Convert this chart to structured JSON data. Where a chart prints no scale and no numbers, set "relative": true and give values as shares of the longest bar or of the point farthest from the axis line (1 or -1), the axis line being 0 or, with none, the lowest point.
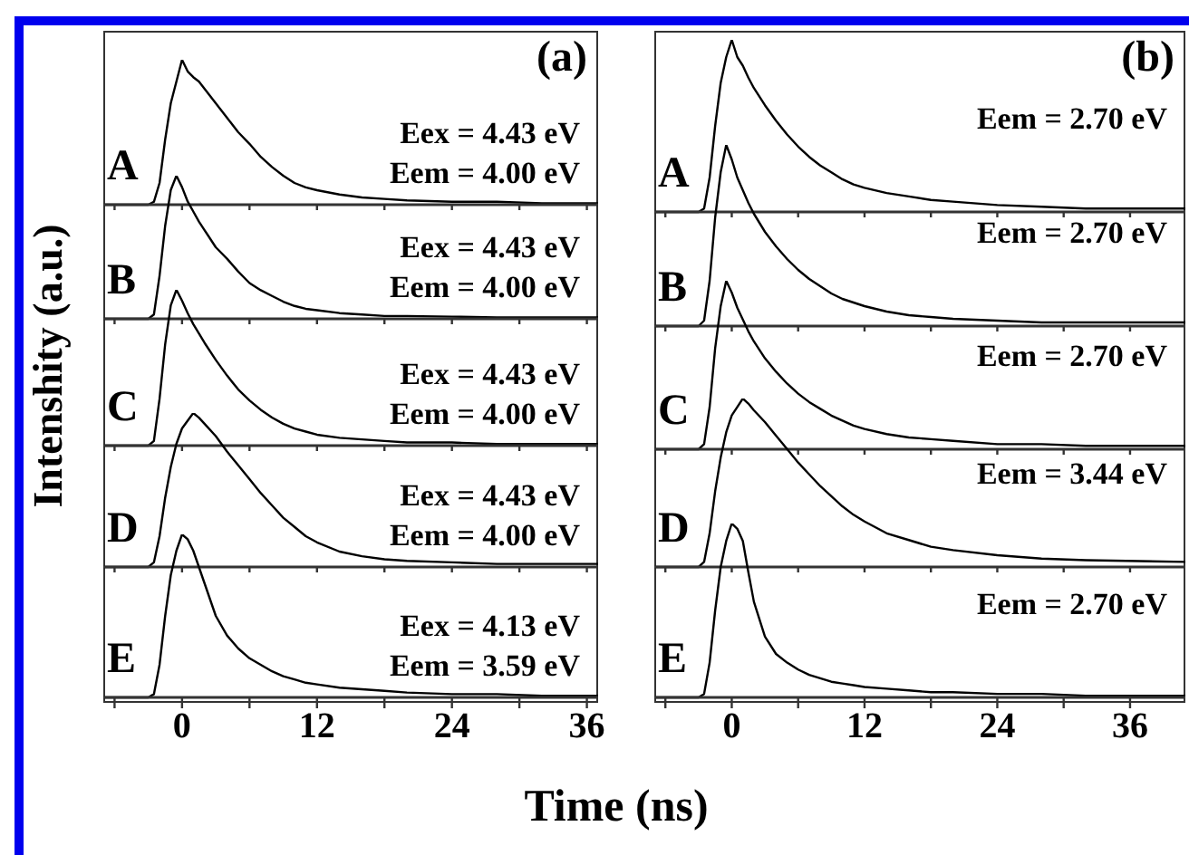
{
  "chart_data": [
    {
      "type": "line",
      "relative": true,
      "title": "(a)",
      "ylabel": "Intenshity (a.u.)",
      "tick_labels": false,
      "annotations": [
        "A",
        "Eex = 4.43 eV",
        "Eem = 4.00 eV"
      ],
      "x": [
        -7,
        -3,
        -2.5,
        -2,
        -1.5,
        -1,
        -0.5,
        0,
        0.5,
        1,
        1.5,
        2,
        3,
        4,
        5,
        6,
        7,
        8,
        9,
        10,
        11,
        12,
        14,
        16,
        18,
        20,
        24,
        28,
        32,
        37
      ],
      "values": [
        0,
        0,
        0.02,
        0.15,
        0.45,
        0.7,
        0.85,
        1,
        0.92,
        0.88,
        0.85,
        0.8,
        0.7,
        0.6,
        0.5,
        0.42,
        0.33,
        0.26,
        0.2,
        0.15,
        0.12,
        0.1,
        0.07,
        0.05,
        0.04,
        0.03,
        0.02,
        0.02,
        0.01,
        0.01
      ],
      "color": "#000000",
      "xlim": [
        -7,
        37
      ],
      "xticks": [
        {
          "value": -6,
          "label": null
        },
        0,
        {
          "value": 6,
          "label": null
        },
        12,
        {
          "value": 18,
          "label": null
        },
        24,
        {
          "value": 30,
          "label": null
        },
        36
      ]
    },
    {
      "type": "line",
      "relative": true,
      "tick_labels": false,
      "annotations": [
        "B",
        "Eex = 4.43 eV",
        "Eem = 4.00 eV"
      ],
      "x": [
        -7,
        -3,
        -2.5,
        -2,
        -1.5,
        -1,
        -0.5,
        0,
        0.5,
        1,
        1.5,
        2,
        3,
        4,
        5,
        6,
        7,
        8,
        9,
        10,
        11,
        12,
        14,
        16,
        18,
        20,
        24,
        28,
        32,
        37
      ],
      "values": [
        0,
        0,
        0.03,
        0.3,
        0.65,
        0.9,
        1,
        0.92,
        0.82,
        0.75,
        0.68,
        0.62,
        0.5,
        0.42,
        0.33,
        0.25,
        0.2,
        0.16,
        0.12,
        0.09,
        0.07,
        0.06,
        0.04,
        0.03,
        0.02,
        0.02,
        0.015,
        0.01,
        0.01,
        0.01
      ],
      "color": "#000000",
      "xlim": [
        -7,
        37
      ],
      "xticks": [
        {
          "value": -6,
          "label": null
        },
        0,
        {
          "value": 6,
          "label": null
        },
        12,
        {
          "value": 18,
          "label": null
        },
        24,
        {
          "value": 30,
          "label": null
        },
        36
      ]
    },
    {
      "type": "line",
      "relative": true,
      "tick_labels": false,
      "annotations": [
        "C",
        "Eex = 4.43 eV",
        "Eem = 4.00 eV"
      ],
      "x": [
        -7,
        -3,
        -2.5,
        -2,
        -1.5,
        -1,
        -0.5,
        0,
        0.5,
        1,
        1.5,
        2,
        3,
        4,
        5,
        6,
        7,
        8,
        9,
        10,
        11,
        12,
        14,
        16,
        18,
        20,
        24,
        28,
        32,
        37
      ],
      "values": [
        0,
        0,
        0.03,
        0.3,
        0.65,
        0.9,
        1,
        0.93,
        0.85,
        0.78,
        0.72,
        0.66,
        0.55,
        0.45,
        0.36,
        0.29,
        0.23,
        0.18,
        0.14,
        0.11,
        0.09,
        0.07,
        0.05,
        0.04,
        0.03,
        0.02,
        0.02,
        0.01,
        0.01,
        0.01
      ],
      "color": "#000000",
      "xlim": [
        -7,
        37
      ],
      "xticks": [
        {
          "value": -6,
          "label": null
        },
        0,
        {
          "value": 6,
          "label": null
        },
        12,
        {
          "value": 18,
          "label": null
        },
        24,
        {
          "value": 30,
          "label": null
        },
        36
      ]
    },
    {
      "type": "line",
      "relative": true,
      "tick_labels": false,
      "annotations": [
        "D",
        "Eex = 4.43 eV",
        "Eem = 4.00 eV"
      ],
      "x": [
        -7,
        -3,
        -2.5,
        -2,
        -1.5,
        -1,
        -0.5,
        0,
        0.5,
        1,
        1.5,
        2,
        3,
        4,
        5,
        6,
        7,
        8,
        9,
        10,
        11,
        12,
        14,
        16,
        18,
        20,
        24,
        28,
        32,
        37
      ],
      "values": [
        0,
        0,
        0.03,
        0.2,
        0.45,
        0.65,
        0.8,
        0.9,
        0.95,
        1,
        0.97,
        0.93,
        0.85,
        0.75,
        0.66,
        0.57,
        0.48,
        0.4,
        0.32,
        0.26,
        0.2,
        0.16,
        0.1,
        0.07,
        0.05,
        0.04,
        0.03,
        0.02,
        0.02,
        0.02
      ],
      "color": "#000000",
      "xlim": [
        -7,
        37
      ],
      "xticks": [
        {
          "value": -6,
          "label": null
        },
        0,
        {
          "value": 6,
          "label": null
        },
        12,
        {
          "value": 18,
          "label": null
        },
        24,
        {
          "value": 30,
          "label": null
        },
        36
      ]
    },
    {
      "type": "line",
      "relative": true,
      "tick_labels": "x",
      "annotations": [
        "E",
        "Eex = 4.13 eV",
        "Eem = 3.59 eV"
      ],
      "x": [
        -7,
        -3,
        -2.5,
        -2,
        -1.5,
        -1,
        -0.5,
        0,
        0.5,
        1,
        1.5,
        2,
        3,
        4,
        5,
        6,
        7,
        8,
        9,
        10,
        11,
        12,
        14,
        16,
        18,
        20,
        24,
        28,
        32,
        37
      ],
      "values": [
        0,
        0,
        0.02,
        0.2,
        0.5,
        0.75,
        0.9,
        1,
        0.97,
        0.9,
        0.8,
        0.7,
        0.5,
        0.38,
        0.3,
        0.24,
        0.2,
        0.16,
        0.13,
        0.11,
        0.09,
        0.08,
        0.06,
        0.05,
        0.04,
        0.03,
        0.02,
        0.02,
        0.01,
        0.01
      ],
      "color": "#000000",
      "xlim": [
        -7,
        37
      ],
      "xticks": [
        {
          "value": -6,
          "label": null
        },
        0,
        {
          "value": 6,
          "label": null
        },
        12,
        {
          "value": 18,
          "label": null
        },
        24,
        {
          "value": 30,
          "label": null
        },
        36
      ]
    },
    {
      "type": "line",
      "relative": true,
      "title": "(b)",
      "tick_labels": false,
      "annotations": [
        "A",
        "Eem = 2.70 eV"
      ],
      "x": [
        -7,
        -3,
        -2.5,
        -2,
        -1.5,
        -1,
        -0.5,
        0,
        0.5,
        1,
        1.5,
        2,
        3,
        4,
        5,
        6,
        7,
        8,
        9,
        10,
        11,
        12,
        14,
        16,
        18,
        20,
        24,
        28,
        32,
        41
      ],
      "values": [
        0,
        0,
        0.02,
        0.2,
        0.5,
        0.75,
        0.9,
        1,
        0.9,
        0.85,
        0.78,
        0.72,
        0.62,
        0.53,
        0.45,
        0.38,
        0.32,
        0.27,
        0.23,
        0.19,
        0.16,
        0.14,
        0.11,
        0.09,
        0.07,
        0.06,
        0.04,
        0.03,
        0.02,
        0.02
      ],
      "color": "#000000",
      "xlim": [
        -7,
        41
      ],
      "xticks": [
        {
          "value": -6,
          "label": null
        },
        0,
        {
          "value": 6,
          "label": null
        },
        12,
        {
          "value": 18,
          "label": null
        },
        24,
        {
          "value": 30,
          "label": null
        },
        36
      ]
    },
    {
      "type": "line",
      "relative": true,
      "tick_labels": false,
      "annotations": [
        "B",
        "Eem = 2.70 eV"
      ],
      "x": [
        -7,
        -3,
        -2.5,
        -2,
        -1.5,
        -1,
        -0.5,
        0,
        0.5,
        1,
        1.5,
        2,
        3,
        4,
        5,
        6,
        7,
        8,
        9,
        10,
        11,
        12,
        14,
        16,
        18,
        20,
        24,
        28,
        32,
        41
      ],
      "values": [
        0,
        0,
        0.03,
        0.25,
        0.6,
        0.85,
        1,
        0.92,
        0.82,
        0.75,
        0.68,
        0.62,
        0.52,
        0.44,
        0.37,
        0.31,
        0.26,
        0.22,
        0.18,
        0.15,
        0.13,
        0.11,
        0.08,
        0.06,
        0.05,
        0.04,
        0.03,
        0.02,
        0.02,
        0.02
      ],
      "color": "#000000",
      "xlim": [
        -7,
        41
      ],
      "xticks": [
        {
          "value": -6,
          "label": null
        },
        0,
        {
          "value": 6,
          "label": null
        },
        12,
        {
          "value": 18,
          "label": null
        },
        24,
        {
          "value": 30,
          "label": null
        },
        36
      ]
    },
    {
      "type": "line",
      "relative": true,
      "tick_labels": false,
      "annotations": [
        "C",
        "Eem = 2.70 eV"
      ],
      "x": [
        -7,
        -3,
        -2.5,
        -2,
        -1.5,
        -1,
        -0.5,
        0,
        0.5,
        1,
        1.5,
        2,
        3,
        4,
        5,
        6,
        7,
        8,
        9,
        10,
        11,
        12,
        14,
        16,
        18,
        20,
        24,
        28,
        32,
        41
      ],
      "values": [
        0,
        0,
        0.03,
        0.25,
        0.6,
        0.85,
        1,
        0.93,
        0.84,
        0.77,
        0.7,
        0.64,
        0.54,
        0.46,
        0.39,
        0.33,
        0.28,
        0.24,
        0.2,
        0.17,
        0.14,
        0.12,
        0.09,
        0.07,
        0.06,
        0.05,
        0.03,
        0.03,
        0.02,
        0.02
      ],
      "color": "#000000",
      "xlim": [
        -7,
        41
      ],
      "xticks": [
        {
          "value": -6,
          "label": null
        },
        0,
        {
          "value": 6,
          "label": null
        },
        12,
        {
          "value": 18,
          "label": null
        },
        24,
        {
          "value": 30,
          "label": null
        },
        36
      ]
    },
    {
      "type": "line",
      "relative": true,
      "tick_labels": false,
      "annotations": [
        "D",
        "Eem = 3.44 eV"
      ],
      "x": [
        -7,
        -3,
        -2.5,
        -2,
        -1.5,
        -1,
        -0.5,
        0,
        0.5,
        1,
        1.5,
        2,
        3,
        4,
        5,
        6,
        7,
        8,
        9,
        10,
        11,
        12,
        14,
        16,
        18,
        20,
        24,
        28,
        32,
        41
      ],
      "values": [
        0,
        0,
        0.03,
        0.2,
        0.45,
        0.65,
        0.8,
        0.9,
        0.95,
        1,
        0.97,
        0.93,
        0.86,
        0.78,
        0.7,
        0.62,
        0.55,
        0.48,
        0.42,
        0.36,
        0.31,
        0.27,
        0.2,
        0.16,
        0.12,
        0.1,
        0.07,
        0.05,
        0.04,
        0.03
      ],
      "color": "#000000",
      "xlim": [
        -7,
        41
      ],
      "xticks": [
        {
          "value": -6,
          "label": null
        },
        0,
        {
          "value": 6,
          "label": null
        },
        12,
        {
          "value": 18,
          "label": null
        },
        24,
        {
          "value": 30,
          "label": null
        },
        36
      ]
    },
    {
      "type": "line",
      "relative": true,
      "xlabel": "Time (ns)",
      "tick_labels": "x",
      "annotations": [
        "E",
        "Eem = 2.70 eV"
      ],
      "x": [
        -7,
        -3,
        -2.5,
        -2,
        -1.5,
        -1,
        -0.5,
        0,
        0.5,
        1,
        1.5,
        2,
        3,
        4,
        5,
        6,
        7,
        8,
        9,
        10,
        11,
        12,
        14,
        16,
        18,
        20,
        24,
        28,
        32,
        41
      ],
      "values": [
        0,
        0,
        0.02,
        0.2,
        0.5,
        0.75,
        0.9,
        1,
        0.97,
        0.9,
        0.72,
        0.55,
        0.35,
        0.25,
        0.2,
        0.16,
        0.13,
        0.11,
        0.09,
        0.08,
        0.07,
        0.06,
        0.05,
        0.04,
        0.03,
        0.03,
        0.02,
        0.02,
        0.01,
        0.01
      ],
      "color": "#000000",
      "xlim": [
        -7,
        41
      ],
      "xticks": [
        {
          "value": -6,
          "label": null
        },
        0,
        {
          "value": 6,
          "label": null
        },
        12,
        {
          "value": 18,
          "label": null
        },
        24,
        {
          "value": 30,
          "label": null
        },
        36
      ]
    }
  ]
}
